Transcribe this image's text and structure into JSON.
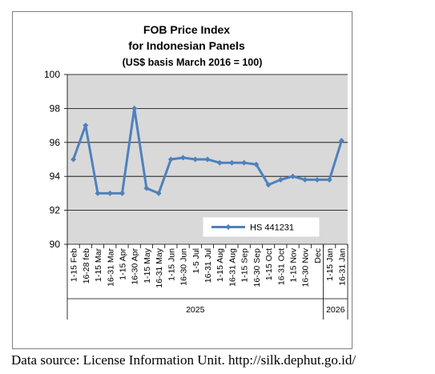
{
  "source_text": "Data source: License Information Unit. http://silk.dephut.go.id/",
  "colors": {
    "plot_bg": "#d9d9d9",
    "line": "#4f81bd",
    "outer_bg": "#ffffff",
    "border": "#7f7f7f"
  },
  "chart_data": {
    "type": "line",
    "title_lines": [
      "FOB Price Index",
      "for Indonesian Panels",
      "(US$ basis March 2016 = 100)"
    ],
    "xlabel": "",
    "ylabel": "",
    "ylim": [
      90,
      100
    ],
    "yticks": [
      90,
      92,
      94,
      96,
      98,
      100
    ],
    "grid": true,
    "legend_position": "bottom-right",
    "categories": [
      "1-15 Feb",
      "16-28 feb",
      "1-15 Mar",
      "16-31 Mar",
      "1-15 Apr",
      "16-30 Apr",
      "1-15 May",
      "16-31 May",
      "1-15 Jun",
      "16-30 Jun",
      "1-5 Jul",
      "16-31 Jul",
      "1-15 Aug",
      "16-31 Aug",
      "1-15 Sep",
      "16-30 Sep",
      "1-15 Oct",
      "16-31 Oct",
      "1-15 Nov",
      "16-30 Nov",
      "Dec",
      "1-15 Jan",
      "16-31 Jan"
    ],
    "years": [
      {
        "label": "2025",
        "start": 0,
        "end": 20
      },
      {
        "label": "2026",
        "start": 21,
        "end": 22
      }
    ],
    "series": [
      {
        "name": "HS 441231",
        "values": [
          95.0,
          97.0,
          93.0,
          93.0,
          93.0,
          98.0,
          93.3,
          93.0,
          95.0,
          95.1,
          95.0,
          95.0,
          94.8,
          94.8,
          94.8,
          94.7,
          93.5,
          93.8,
          94.0,
          93.8,
          93.8,
          93.8,
          96.1
        ]
      }
    ]
  }
}
